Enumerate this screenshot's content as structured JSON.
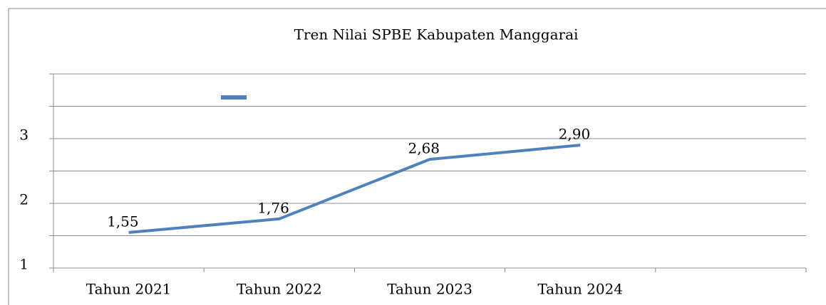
{
  "chart_data": {
    "type": "line",
    "title": "Tren Nilai SPBE Kabupaten Manggarai",
    "categories": [
      "Tahun 2021",
      "Tahun 2022",
      "Tahun 2023",
      "Tahun 2024",
      null
    ],
    "series": [
      {
        "color": "#4f81bd",
        "values": [
          1.55,
          1.76,
          2.68,
          2.9,
          null
        ],
        "value_labels": [
          "1,55",
          "1,76",
          "2,68",
          "2,90",
          null
        ]
      }
    ],
    "ylim": [
      1,
      4
    ],
    "yticks": [
      1,
      2,
      3
    ],
    "minor_yticks": [
      1.5,
      2.5,
      3.5,
      4
    ],
    "grid": true
  }
}
